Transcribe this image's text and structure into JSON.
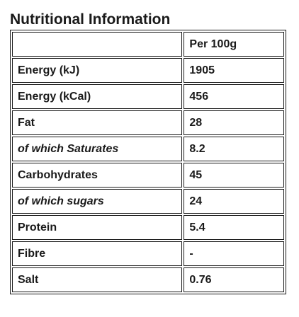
{
  "title": "Nutritional Information",
  "table": {
    "header": [
      "",
      "Per 100g"
    ],
    "rows": [
      {
        "label": "Energy (kJ)",
        "value": "1905",
        "italic": false
      },
      {
        "label": "Energy (kCal)",
        "value": "456",
        "italic": false
      },
      {
        "label": "Fat",
        "value": "28",
        "italic": false
      },
      {
        "label": "of which Saturates",
        "value": "8.2",
        "italic": true
      },
      {
        "label": "Carbohydrates",
        "value": "45",
        "italic": false
      },
      {
        "label": "of which sugars",
        "value": "24",
        "italic": true
      },
      {
        "label": "Protein",
        "value": "5.4",
        "italic": false
      },
      {
        "label": "Fibre",
        "value": "-",
        "italic": false
      },
      {
        "label": "Salt",
        "value": "0.76",
        "italic": false
      }
    ]
  }
}
